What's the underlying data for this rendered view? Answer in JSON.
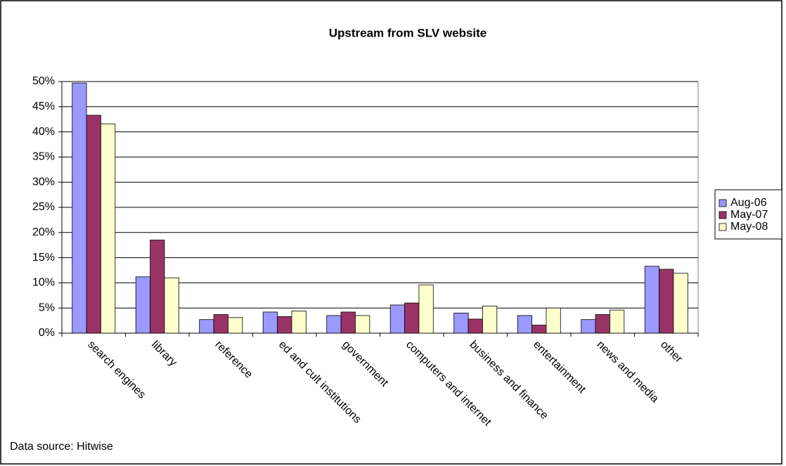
{
  "chart_data": {
    "type": "bar",
    "title": "Upstream from SLV website",
    "annotation": "Data source: Hitwise",
    "categories": [
      "search engines",
      "library",
      "reference",
      "ed and cult institutions",
      "government",
      "computers and internet",
      "business and finance",
      "entertainment",
      "news and media",
      "other"
    ],
    "series": [
      {
        "name": "Aug-06",
        "color": "#9999ff",
        "values": [
          49.7,
          11.2,
          2.7,
          4.2,
          3.5,
          5.6,
          4.0,
          3.5,
          2.7,
          13.3
        ]
      },
      {
        "name": "May-07",
        "color": "#993366",
        "values": [
          43.3,
          18.5,
          3.7,
          3.3,
          4.2,
          6.0,
          2.8,
          1.6,
          3.7,
          12.7
        ]
      },
      {
        "name": "May-08",
        "color": "#ffffcc",
        "values": [
          41.6,
          11.0,
          3.1,
          4.4,
          3.5,
          9.6,
          5.4,
          5.0,
          4.6,
          11.9
        ]
      }
    ],
    "ylim": [
      0,
      50
    ],
    "yticks": [
      {
        "value": 0,
        "label": "0%"
      },
      {
        "value": 5,
        "label": "5%"
      },
      {
        "value": 10,
        "label": "10%"
      },
      {
        "value": 15,
        "label": "15%"
      },
      {
        "value": 20,
        "label": "20%"
      },
      {
        "value": 25,
        "label": "25%"
      },
      {
        "value": 30,
        "label": "30%"
      },
      {
        "value": 35,
        "label": "35%"
      },
      {
        "value": 40,
        "label": "40%"
      },
      {
        "value": 45,
        "label": "45%"
      },
      {
        "value": 50,
        "label": "50%"
      }
    ],
    "grid": true,
    "legend": "right"
  }
}
